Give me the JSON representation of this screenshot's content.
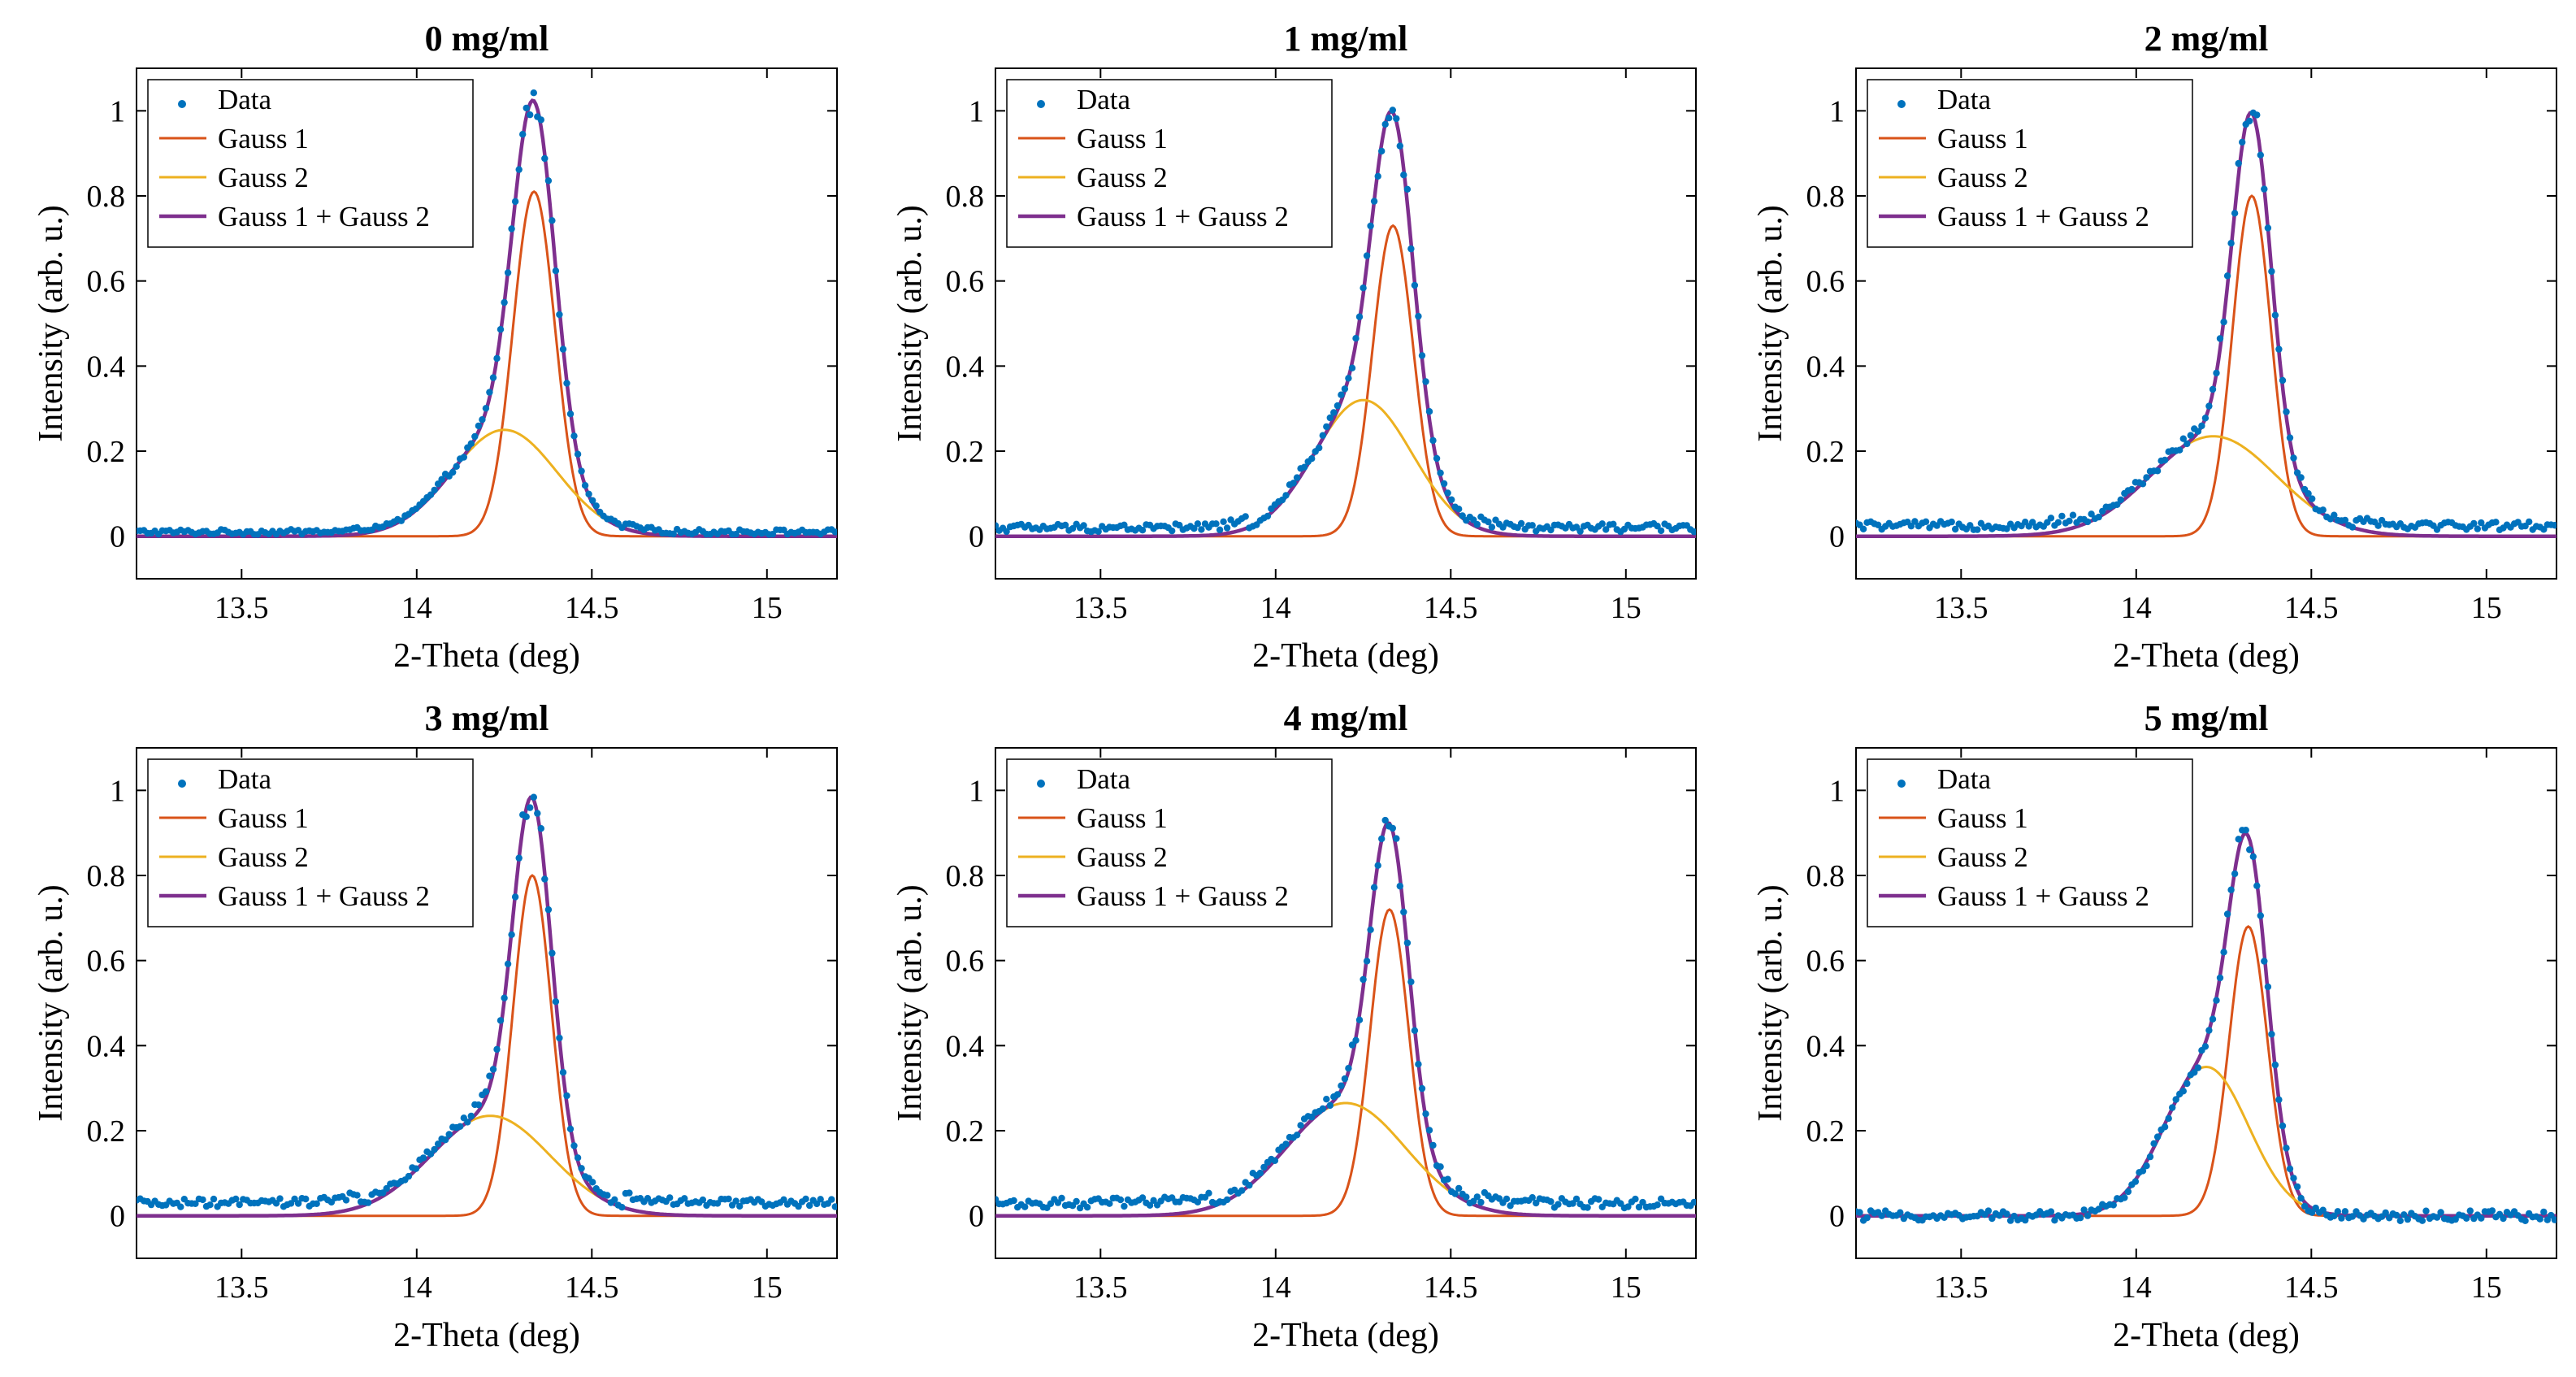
{
  "colors": {
    "data": "#0072BD",
    "gauss1": "#D95319",
    "gauss2": "#EDB120",
    "sum": "#7E2F8E",
    "axis": "#000000",
    "background": "#ffffff"
  },
  "chart_data": [
    {
      "type": "scatter",
      "title": "0 mg/ml",
      "xlabel": "2-Theta (deg)",
      "ylabel": "Intensity (arb. u.)",
      "xlim": [
        13.2,
        15.2
      ],
      "ylim": [
        -0.1,
        1.1
      ],
      "xticks": [
        13.5,
        14,
        14.5,
        15
      ],
      "xtick_labels": [
        "13.5",
        "14",
        "14.5",
        "15"
      ],
      "yticks": [
        0,
        0.2,
        0.4,
        0.6,
        0.8,
        1
      ],
      "ytick_labels": [
        "0",
        "0.2",
        "0.4",
        "0.6",
        "0.8",
        "1"
      ],
      "legend": [
        "Data",
        "Gauss 1",
        "Gauss 2",
        "Gauss 1 + Gauss 2"
      ],
      "legend_position": "top-left",
      "baseline": 0.01,
      "noise": 0.006,
      "gauss1": {
        "amplitude": 0.81,
        "center": 14.335,
        "sigma": 0.06
      },
      "gauss2": {
        "amplitude": 0.25,
        "center": 14.25,
        "sigma": 0.15
      }
    },
    {
      "type": "scatter",
      "title": "1 mg/ml",
      "xlabel": "2-Theta (deg)",
      "ylabel": "Intensity (arb. u.)",
      "xlim": [
        13.2,
        15.2
      ],
      "ylim": [
        -0.1,
        1.1
      ],
      "xticks": [
        13.5,
        14,
        14.5,
        15
      ],
      "xtick_labels": [
        "13.5",
        "14",
        "14.5",
        "15"
      ],
      "yticks": [
        0,
        0.2,
        0.4,
        0.6,
        0.8,
        1
      ],
      "ytick_labels": [
        "0",
        "0.2",
        "0.4",
        "0.6",
        "0.8",
        "1"
      ],
      "legend": [
        "Data",
        "Gauss 1",
        "Gauss 2",
        "Gauss 1 + Gauss 2"
      ],
      "legend_position": "top-left",
      "baseline": 0.02,
      "noise": 0.01,
      "gauss1": {
        "amplitude": 0.73,
        "center": 14.335,
        "sigma": 0.058
      },
      "gauss2": {
        "amplitude": 0.32,
        "center": 14.25,
        "sigma": 0.14
      }
    },
    {
      "type": "scatter",
      "title": "2 mg/ml",
      "xlabel": "2-Theta (deg)",
      "ylabel": "Intensity (arb. u.)",
      "xlim": [
        13.2,
        15.2
      ],
      "ylim": [
        -0.1,
        1.1
      ],
      "xticks": [
        13.5,
        14,
        14.5,
        15
      ],
      "xtick_labels": [
        "13.5",
        "14",
        "14.5",
        "15"
      ],
      "yticks": [
        0,
        0.2,
        0.4,
        0.6,
        0.8,
        1
      ],
      "ytick_labels": [
        "0",
        "0.2",
        "0.4",
        "0.6",
        "0.8",
        "1"
      ],
      "legend": [
        "Data",
        "Gauss 1",
        "Gauss 2",
        "Gauss 1 + Gauss 2"
      ],
      "legend_position": "top-left",
      "baseline": 0.025,
      "noise": 0.01,
      "gauss1": {
        "amplitude": 0.8,
        "center": 14.33,
        "sigma": 0.055
      },
      "gauss2": {
        "amplitude": 0.235,
        "center": 14.22,
        "sigma": 0.18
      }
    },
    {
      "type": "scatter",
      "title": "3 mg/ml",
      "xlabel": "2-Theta (deg)",
      "ylabel": "Intensity (arb. u.)",
      "xlim": [
        13.2,
        15.2
      ],
      "ylim": [
        -0.1,
        1.1
      ],
      "xticks": [
        13.5,
        14,
        14.5,
        15
      ],
      "xtick_labels": [
        "13.5",
        "14",
        "14.5",
        "15"
      ],
      "yticks": [
        0,
        0.2,
        0.4,
        0.6,
        0.8,
        1
      ],
      "ytick_labels": [
        "0",
        "0.2",
        "0.4",
        "0.6",
        "0.8",
        "1"
      ],
      "legend": [
        "Data",
        "Gauss 1",
        "Gauss 2",
        "Gauss 1 + Gauss 2"
      ],
      "legend_position": "top-left",
      "baseline": 0.03,
      "noise": 0.01,
      "gauss1": {
        "amplitude": 0.8,
        "center": 14.33,
        "sigma": 0.055
      },
      "gauss2": {
        "amplitude": 0.235,
        "center": 14.21,
        "sigma": 0.17
      }
    },
    {
      "type": "scatter",
      "title": "4 mg/ml",
      "xlabel": "2-Theta (deg)",
      "ylabel": "Intensity (arb. u.)",
      "xlim": [
        13.2,
        15.2
      ],
      "ylim": [
        -0.1,
        1.1
      ],
      "xticks": [
        13.5,
        14,
        14.5,
        15
      ],
      "xtick_labels": [
        "13.5",
        "14",
        "14.5",
        "15"
      ],
      "yticks": [
        0,
        0.2,
        0.4,
        0.6,
        0.8,
        1
      ],
      "ytick_labels": [
        "0",
        "0.2",
        "0.4",
        "0.6",
        "0.8",
        "1"
      ],
      "legend": [
        "Data",
        "Gauss 1",
        "Gauss 2",
        "Gauss 1 + Gauss 2"
      ],
      "legend_position": "top-left",
      "baseline": 0.03,
      "noise": 0.012,
      "gauss1": {
        "amplitude": 0.72,
        "center": 14.325,
        "sigma": 0.055
      },
      "gauss2": {
        "amplitude": 0.265,
        "center": 14.2,
        "sigma": 0.17
      }
    },
    {
      "type": "scatter",
      "title": "5 mg/ml",
      "xlabel": "2-Theta (deg)",
      "ylabel": "Intensity (arb. u.)",
      "xlim": [
        13.2,
        15.2
      ],
      "ylim": [
        -0.1,
        1.1
      ],
      "xticks": [
        13.5,
        14,
        14.5,
        15
      ],
      "xtick_labels": [
        "13.5",
        "14",
        "14.5",
        "15"
      ],
      "yticks": [
        0,
        0.2,
        0.4,
        0.6,
        0.8,
        1
      ],
      "ytick_labels": [
        "0",
        "0.2",
        "0.4",
        "0.6",
        "0.8",
        "1"
      ],
      "legend": [
        "Data",
        "Gauss 1",
        "Gauss 2",
        "Gauss 1 + Gauss 2"
      ],
      "legend_position": "top-left",
      "baseline": 0.0,
      "noise": 0.012,
      "gauss1": {
        "amplitude": 0.68,
        "center": 14.32,
        "sigma": 0.055
      },
      "gauss2": {
        "amplitude": 0.35,
        "center": 14.2,
        "sigma": 0.12
      }
    }
  ]
}
